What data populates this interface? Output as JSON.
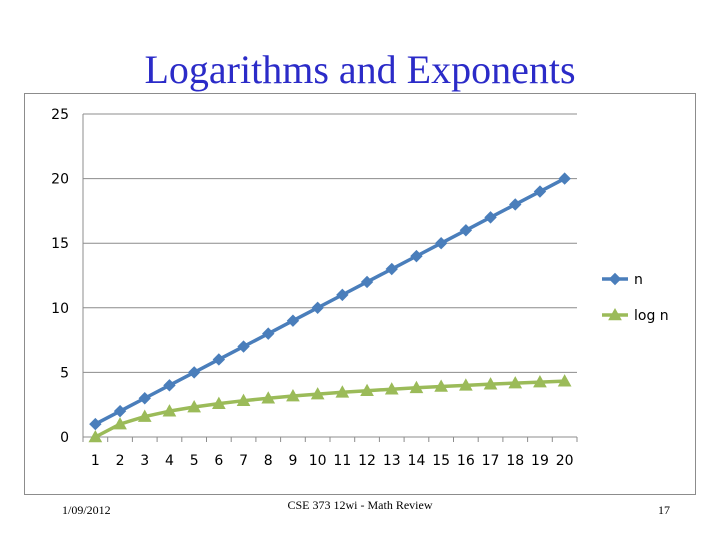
{
  "slide": {
    "title": "Logarithms and Exponents",
    "footer_date": "1/09/2012",
    "footer_center": "CSE 373 12wi - Math Review",
    "page_number": "17"
  },
  "chart_data": {
    "type": "line",
    "title": "",
    "xlabel": "",
    "ylabel": "",
    "categories": [
      "1",
      "2",
      "3",
      "4",
      "5",
      "6",
      "7",
      "8",
      "9",
      "10",
      "11",
      "12",
      "13",
      "14",
      "15",
      "16",
      "17",
      "18",
      "19",
      "20"
    ],
    "ylim": [
      0,
      25
    ],
    "yticks": [
      0,
      5,
      10,
      15,
      20,
      25
    ],
    "grid": "horizontal",
    "legend_position": "right",
    "series": [
      {
        "name": "n",
        "color": "#4a7ebb",
        "marker": "diamond",
        "values": [
          1,
          2,
          3,
          4,
          5,
          6,
          7,
          8,
          9,
          10,
          11,
          12,
          13,
          14,
          15,
          16,
          17,
          18,
          19,
          20
        ]
      },
      {
        "name": "log n",
        "color": "#9bbb59",
        "marker": "triangle",
        "values": [
          0,
          1,
          1.58,
          2,
          2.32,
          2.58,
          2.81,
          3,
          3.17,
          3.32,
          3.46,
          3.58,
          3.7,
          3.81,
          3.91,
          4,
          4.09,
          4.17,
          4.25,
          4.32
        ]
      }
    ]
  }
}
